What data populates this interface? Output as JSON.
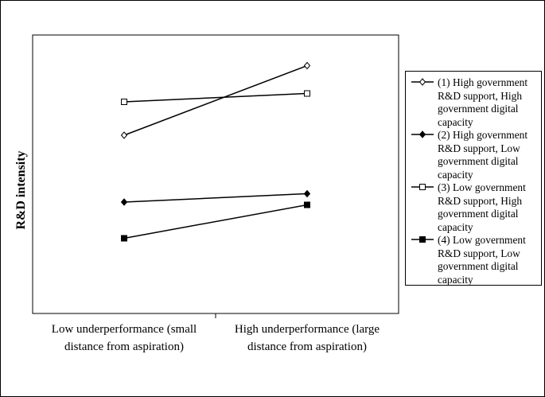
{
  "chart_data": {
    "type": "line",
    "ylabel": "R&D intensity",
    "xlabel": "",
    "categories": [
      "Low underperformance (small distance from aspiration)",
      "High underperformance (large distance from aspiration)"
    ],
    "category_lines": [
      [
        "Low underperformance (small",
        "distance from aspiration)"
      ],
      [
        "High underperformance (large",
        "distance from aspiration)"
      ]
    ],
    "ylim": [
      0,
      10
    ],
    "grid": false,
    "legend_position": "right",
    "series": [
      {
        "name": "(1) High government R&D support, High government digital capacity",
        "marker": "diamond-open",
        "values": [
          6.4,
          8.9
        ]
      },
      {
        "name": "(2) High government R&D support, Low government digital capacity",
        "marker": "diamond-filled",
        "values": [
          4.0,
          4.3
        ]
      },
      {
        "name": "(3) Low government R&D support, High government digital capacity",
        "marker": "square-open",
        "values": [
          7.6,
          7.9
        ]
      },
      {
        "name": "(4) Low government R&D support, Low government digital capacity",
        "marker": "square-filled",
        "values": [
          2.7,
          3.9
        ]
      }
    ]
  },
  "legend_lines": [
    [
      "(1) High government",
      "R&D support, High",
      "government digital",
      "capacity"
    ],
    [
      "(2) High government",
      "R&D support, Low",
      "government digital",
      "capacity"
    ],
    [
      "(3) Low government",
      "R&D support, High",
      "government digital",
      "capacity"
    ],
    [
      "(4) Low government",
      "R&D support, Low",
      "government digital",
      "capacity"
    ]
  ]
}
